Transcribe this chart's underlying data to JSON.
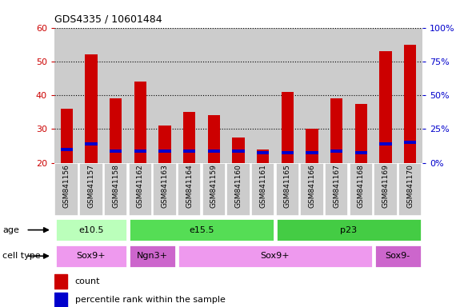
{
  "title": "GDS4335 / 10601484",
  "samples": [
    "GSM841156",
    "GSM841157",
    "GSM841158",
    "GSM841162",
    "GSM841163",
    "GSM841164",
    "GSM841159",
    "GSM841160",
    "GSM841161",
    "GSM841165",
    "GSM841166",
    "GSM841167",
    "GSM841168",
    "GSM841169",
    "GSM841170"
  ],
  "count_values": [
    36,
    52,
    39,
    44,
    31,
    35,
    34,
    27.5,
    24,
    41,
    30,
    39,
    37.5,
    53,
    55
  ],
  "percentile_values": [
    24,
    25.5,
    23.5,
    23.5,
    23.5,
    23.5,
    23.5,
    23.5,
    23,
    23,
    23,
    23.5,
    23,
    25.5,
    26
  ],
  "bar_base": 20,
  "ylim": [
    20,
    60
  ],
  "yticks_left": [
    20,
    30,
    40,
    50,
    60
  ],
  "yticks_right_pos": [
    20,
    30,
    40,
    50,
    60
  ],
  "yticks_right_labels": [
    "0%",
    "25%",
    "50%",
    "75%",
    "100%"
  ],
  "count_color": "#cc0000",
  "percentile_color": "#0000cc",
  "plot_bg_color": "#cccccc",
  "xtick_bg_color": "#cccccc",
  "age_groups": [
    {
      "label": "e10.5",
      "start": 0,
      "end": 3,
      "color": "#bbffbb"
    },
    {
      "label": "e15.5",
      "start": 3,
      "end": 9,
      "color": "#55dd55"
    },
    {
      "label": "p23",
      "start": 9,
      "end": 15,
      "color": "#44cc44"
    }
  ],
  "cell_groups": [
    {
      "label": "Sox9+",
      "start": 0,
      "end": 3,
      "color": "#ee99ee"
    },
    {
      "label": "Ngn3+",
      "start": 3,
      "end": 5,
      "color": "#cc66cc"
    },
    {
      "label": "Sox9+",
      "start": 5,
      "end": 13,
      "color": "#ee99ee"
    },
    {
      "label": "Sox9-",
      "start": 13,
      "end": 15,
      "color": "#cc66cc"
    }
  ],
  "legend_count_label": "count",
  "legend_percentile_label": "percentile rank within the sample",
  "bar_width": 0.5
}
